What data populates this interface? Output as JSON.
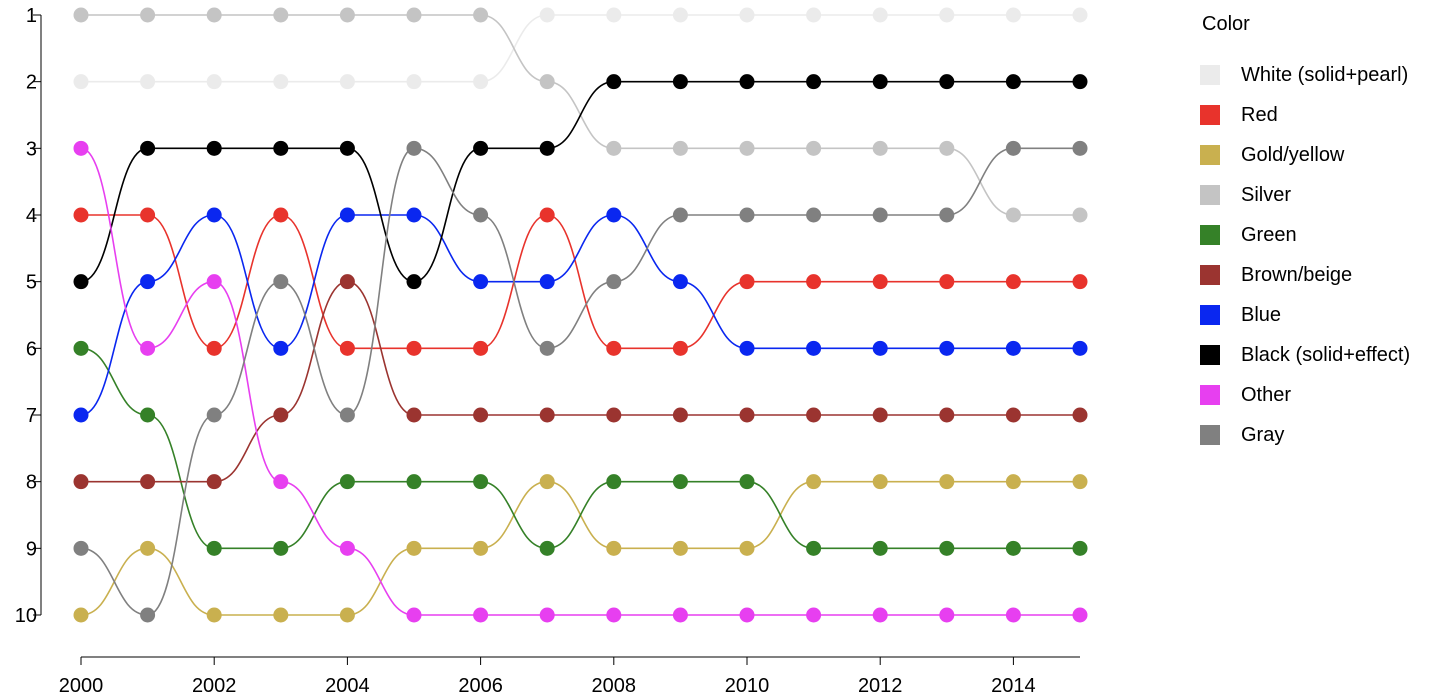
{
  "chart_data": {
    "type": "line",
    "title": "",
    "xlabel": "",
    "ylabel": "",
    "legend_title": "Color",
    "legend_position": "right",
    "x": [
      2000,
      2001,
      2002,
      2003,
      2004,
      2005,
      2006,
      2007,
      2008,
      2009,
      2010,
      2011,
      2012,
      2013,
      2014,
      2015
    ],
    "xlim": [
      2000,
      2015
    ],
    "ylim": [
      1,
      10
    ],
    "y_reversed": true,
    "x_ticks": [
      "2000",
      "2002",
      "2004",
      "2006",
      "2008",
      "2010",
      "2012",
      "2014"
    ],
    "y_ticks": [
      "1",
      "2",
      "3",
      "4",
      "5",
      "6",
      "7",
      "8",
      "9",
      "10"
    ],
    "series": [
      {
        "name": "White (solid+pearl)",
        "color": "#ebebeb",
        "values": [
          2,
          2,
          2,
          2,
          2,
          2,
          2,
          1,
          1,
          1,
          1,
          1,
          1,
          1,
          1,
          1
        ]
      },
      {
        "name": "Red",
        "color": "#e8332c",
        "values": [
          4,
          4,
          6,
          4,
          6,
          6,
          6,
          4,
          6,
          6,
          5,
          5,
          5,
          5,
          5,
          5
        ]
      },
      {
        "name": "Gold/yellow",
        "color": "#c9b04f",
        "values": [
          10,
          9,
          10,
          10,
          10,
          9,
          9,
          8,
          9,
          9,
          9,
          8,
          8,
          8,
          8,
          8
        ]
      },
      {
        "name": "Silver",
        "color": "#c4c4c4",
        "values": [
          1,
          1,
          1,
          1,
          1,
          1,
          1,
          2,
          3,
          3,
          3,
          3,
          3,
          3,
          4,
          4
        ]
      },
      {
        "name": "Green",
        "color": "#358128",
        "values": [
          6,
          7,
          9,
          9,
          8,
          8,
          8,
          9,
          8,
          8,
          8,
          9,
          9,
          9,
          9,
          9
        ]
      },
      {
        "name": "Brown/beige",
        "color": "#9b3430",
        "values": [
          8,
          8,
          8,
          7,
          5,
          7,
          7,
          7,
          7,
          7,
          7,
          7,
          7,
          7,
          7,
          7
        ]
      },
      {
        "name": "Blue",
        "color": "#0a27f0",
        "values": [
          7,
          5,
          4,
          6,
          4,
          4,
          5,
          5,
          4,
          5,
          6,
          6,
          6,
          6,
          6,
          6
        ]
      },
      {
        "name": "Black (solid+effect)",
        "color": "#000000",
        "values": [
          5,
          3,
          3,
          3,
          3,
          5,
          3,
          3,
          2,
          2,
          2,
          2,
          2,
          2,
          2,
          2
        ]
      },
      {
        "name": "Other",
        "color": "#e73ff0",
        "values": [
          3,
          6,
          5,
          8,
          9,
          10,
          10,
          10,
          10,
          10,
          10,
          10,
          10,
          10,
          10,
          10
        ]
      },
      {
        "name": "Gray",
        "color": "#808080",
        "values": [
          9,
          10,
          7,
          5,
          7,
          3,
          4,
          6,
          5,
          4,
          4,
          4,
          4,
          4,
          3,
          3
        ]
      }
    ]
  }
}
